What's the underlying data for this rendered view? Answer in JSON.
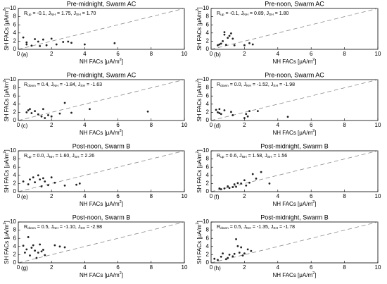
{
  "chart_data": [
    {
      "type": "scatter",
      "title": "Pre-midnight, Swarm AC",
      "label": "(a)",
      "annotation": [
        "R",
        "up",
        " = -0.1, J",
        "NH",
        " = 1.75, J",
        "SH",
        " = 1.70"
      ],
      "xlabel": [
        "NH FACs [μA/m",
        "2",
        "]"
      ],
      "ylabel": [
        "SH FACs [μA/m",
        "2",
        "]"
      ],
      "xlim": [
        0,
        10
      ],
      "ylim": [
        0,
        10
      ],
      "xticks": [
        0,
        2,
        4,
        6,
        8,
        10
      ],
      "yticks": [
        0,
        2,
        4,
        6,
        8,
        10
      ],
      "color": "#222222",
      "x": [
        0.3,
        0.5,
        0.5,
        0.8,
        1.0,
        1.2,
        1.3,
        1.5,
        1.7,
        2.0,
        2.3,
        2.7,
        3.0,
        3.2,
        4.0,
        5.8
      ],
      "values": [
        2.9,
        1.7,
        1.2,
        0.9,
        2.5,
        1.9,
        0.8,
        2.4,
        1.0,
        2.6,
        1.2,
        1.8,
        1.9,
        1.6,
        1.2,
        1.5
      ]
    },
    {
      "type": "scatter",
      "title": "Pre-noon, Swarm AC",
      "label": "(b)",
      "annotation": [
        "R",
        "up",
        " = -0.1, J",
        "NH",
        " = 0.89, J",
        "SH",
        " = 1.80"
      ],
      "xlabel": [
        "NH FACs [μA/m",
        "2",
        "]"
      ],
      "ylabel": [
        "SH FACs [μA/m",
        "2",
        "]"
      ],
      "xlim": [
        0,
        10
      ],
      "ylim": [
        0,
        10
      ],
      "xticks": [
        0,
        2,
        4,
        6,
        8,
        10
      ],
      "yticks": [
        0,
        2,
        4,
        6,
        8,
        10
      ],
      "color": "#222222",
      "x": [
        0.4,
        0.5,
        0.6,
        0.7,
        0.8,
        0.8,
        0.9,
        1.0,
        1.1,
        1.2,
        1.3,
        1.4,
        2.0,
        2.3,
        2.5
      ],
      "values": [
        1.0,
        1.2,
        1.4,
        2.0,
        3.6,
        4.2,
        1.1,
        2.8,
        3.3,
        3.9,
        2.6,
        1.0,
        1.0,
        1.5,
        1.2
      ]
    },
    {
      "type": "scatter",
      "title": "Pre-midnight, Swarm AC",
      "label": "(c)",
      "annotation": [
        "R",
        "down",
        " = 0.4, J",
        "NH",
        " = -1.84, J",
        "SH",
        " = -1.63"
      ],
      "xlabel": [
        "NH FACs [μA/m",
        "2",
        "]"
      ],
      "ylabel": [
        "SH FACs [μA/m",
        "2",
        "]"
      ],
      "xlim": [
        0,
        10
      ],
      "ylim": [
        0,
        10
      ],
      "xticks": [
        0,
        2,
        4,
        6,
        8,
        10
      ],
      "yticks": [
        0,
        2,
        4,
        6,
        8,
        10
      ],
      "color": "#222222",
      "x": [
        0.5,
        0.6,
        0.7,
        0.8,
        1.0,
        1.2,
        1.4,
        1.5,
        1.6,
        1.8,
        2.0,
        2.8,
        2.5,
        3.2,
        4.3,
        7.8
      ],
      "values": [
        2.0,
        2.5,
        2.8,
        1.8,
        2.3,
        1.5,
        1.0,
        2.8,
        0.6,
        1.3,
        1.0,
        4.3,
        1.7,
        1.9,
        2.8,
        2.2
      ]
    },
    {
      "type": "scatter",
      "title": "Pre-noon, Swarm AC",
      "label": "(d)",
      "annotation": [
        "R",
        "down",
        " = 0.0, J",
        "NH",
        " = -1.52, J",
        "SH",
        " = -1.98"
      ],
      "xlabel": [
        "NH FACs [μA/m",
        "2",
        "]"
      ],
      "ylabel": [
        "SH FACs [μA/m",
        "2",
        "]"
      ],
      "xlim": [
        0,
        10
      ],
      "ylim": [
        0,
        10
      ],
      "xticks": [
        0,
        2,
        4,
        6,
        8,
        10
      ],
      "yticks": [
        0,
        2,
        4,
        6,
        8,
        10
      ],
      "color": "#222222",
      "x": [
        0.3,
        0.4,
        0.5,
        0.5,
        0.6,
        0.8,
        1.2,
        1.3,
        2.0,
        2.1,
        2.2,
        2.3,
        2.8,
        4.6
      ],
      "values": [
        2.6,
        2.0,
        2.8,
        1.8,
        1.6,
        2.5,
        2.1,
        1.3,
        0.6,
        1.6,
        1.0,
        2.3,
        2.3,
        0.9
      ]
    },
    {
      "type": "scatter",
      "title": "Post-noon, Swarm B",
      "label": "(e)",
      "annotation": [
        "R",
        "up",
        " = 0.0, J",
        "NH",
        " = 1.60, J",
        "SH",
        " = 2.26"
      ],
      "xlabel": [
        "NH FACs [μA/m",
        "2",
        "]"
      ],
      "ylabel": [
        "SH FACs [μA/m",
        "2",
        "]"
      ],
      "xlim": [
        0,
        10
      ],
      "ylim": [
        0,
        10
      ],
      "xticks": [
        0,
        2,
        4,
        6,
        8,
        10
      ],
      "yticks": [
        0,
        2,
        4,
        6,
        8,
        10
      ],
      "color": "#222222",
      "x": [
        0.3,
        0.6,
        0.7,
        0.9,
        1.0,
        1.2,
        1.3,
        1.4,
        1.5,
        1.6,
        1.8,
        2.0,
        2.2,
        2.8,
        3.5,
        3.7
      ],
      "values": [
        2.5,
        1.8,
        3.0,
        3.5,
        2.3,
        4.0,
        3.0,
        1.3,
        3.3,
        2.5,
        1.6,
        3.5,
        2.2,
        1.5,
        1.7,
        2.0
      ]
    },
    {
      "type": "scatter",
      "title": "Post-midnight, Swarm B",
      "label": "(f)",
      "annotation": [
        "R",
        "up",
        " = 0.6, J",
        "NH",
        " = 1.58, J",
        "SH",
        " = 1.56"
      ],
      "xlabel": [
        "NH FACs [μA/m",
        "2",
        "]"
      ],
      "ylabel": [
        "SH FACs [μA/m",
        "2",
        "]"
      ],
      "xlim": [
        0,
        10
      ],
      "ylim": [
        0,
        10
      ],
      "xticks": [
        0,
        2,
        4,
        6,
        8,
        10
      ],
      "yticks": [
        0,
        2,
        4,
        6,
        8,
        10
      ],
      "color": "#222222",
      "x": [
        0.5,
        0.6,
        0.8,
        1.0,
        1.1,
        1.3,
        1.4,
        1.5,
        1.6,
        1.8,
        2.0,
        2.1,
        2.3,
        2.5,
        2.7,
        3.0,
        3.5
      ],
      "values": [
        0.8,
        0.6,
        0.8,
        1.3,
        0.9,
        1.1,
        1.8,
        1.2,
        2.1,
        2.0,
        2.8,
        1.5,
        2.2,
        4.3,
        3.2,
        4.8,
        2.0
      ]
    },
    {
      "type": "scatter",
      "title": "Post-noon, Swarm B",
      "label": "(g)",
      "annotation": [
        "R",
        "down",
        " = 0.5, J",
        "NH",
        " = -1.10, J",
        "SH",
        " = -2.98"
      ],
      "xlabel": [
        "NH FACs [μA/m",
        "2",
        "]"
      ],
      "ylabel": [
        "SH FACs [μA/m",
        "2",
        "]"
      ],
      "xlim": [
        0,
        10
      ],
      "ylim": [
        0,
        10
      ],
      "xticks": [
        0,
        2,
        4,
        6,
        8,
        10
      ],
      "yticks": [
        0,
        2,
        4,
        6,
        8,
        10
      ],
      "color": "#222222",
      "x": [
        0.3,
        0.4,
        0.5,
        0.6,
        0.7,
        0.8,
        0.9,
        1.0,
        1.1,
        1.2,
        1.3,
        1.4,
        1.5,
        1.6,
        2.2,
        2.5,
        2.8
      ],
      "values": [
        4.2,
        2.5,
        3.3,
        6.3,
        1.8,
        3.7,
        4.3,
        3.0,
        1.2,
        2.5,
        4.5,
        2.8,
        3.2,
        1.9,
        4.3,
        4.0,
        3.8
      ]
    },
    {
      "type": "scatter",
      "title": "Post-midnight, Swarm B",
      "label": "(h)",
      "annotation": [
        "R",
        "down",
        " = 0.5, J",
        "NH",
        " = -1.35, J",
        "SH",
        " = -1.78"
      ],
      "xlabel": [
        "NH FACs [μA/m",
        "2",
        "]"
      ],
      "ylabel": [
        "SH FACs [μA/m",
        "2",
        "]"
      ],
      "xlim": [
        0,
        10
      ],
      "ylim": [
        0,
        10
      ],
      "xticks": [
        0,
        2,
        4,
        6,
        8,
        10
      ],
      "yticks": [
        0,
        2,
        4,
        6,
        8,
        10
      ],
      "color": "#222222",
      "x": [
        0.2,
        0.4,
        0.6,
        0.7,
        0.9,
        1.0,
        1.1,
        1.3,
        1.4,
        1.5,
        1.6,
        1.7,
        1.8,
        1.9,
        2.0,
        2.2,
        2.4
      ],
      "values": [
        1.0,
        0.7,
        1.5,
        2.3,
        0.9,
        1.2,
        2.0,
        1.6,
        2.2,
        5.8,
        4.1,
        2.5,
        3.8,
        1.8,
        2.3,
        3.3,
        2.9
      ]
    }
  ]
}
